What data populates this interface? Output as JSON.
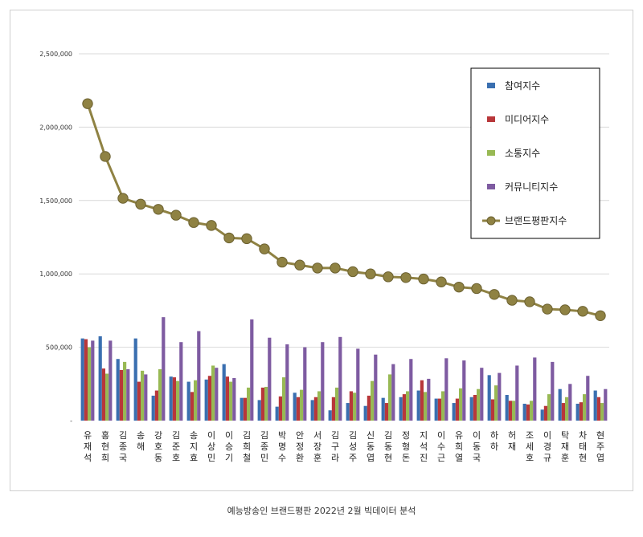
{
  "caption": "예능방송인 브랜드평판  2022년 2월 빅데이터 분석",
  "chart_data": {
    "type": "bar",
    "ylim": [
      0,
      2500000
    ],
    "yticks": [
      {
        "value": 0,
        "label": "-"
      },
      {
        "value": 500000,
        "label": "500,000"
      },
      {
        "value": 1000000,
        "label": "1,000,000"
      },
      {
        "value": 1500000,
        "label": "1,500,000"
      },
      {
        "value": 2000000,
        "label": "2,000,000"
      },
      {
        "value": 2500000,
        "label": "2,500,000"
      }
    ],
    "grid": true,
    "legend_position": "top-right",
    "categories": [
      "유재석",
      "홍현희",
      "김종국",
      "송해",
      "강호동",
      "김준호",
      "송지효",
      "이상민",
      "이승기",
      "김희철",
      "김종민",
      "박명수",
      "안정환",
      "서장훈",
      "김구라",
      "김성주",
      "신동엽",
      "김동현",
      "정형돈",
      "지석진",
      "이수근",
      "유희열",
      "이동국",
      "하하",
      "허재",
      "조세호",
      "이경규",
      "탁재훈",
      "차태현",
      "현주엽"
    ],
    "series": [
      {
        "name": "참여지수",
        "type": "bar",
        "color": "#3a6fb0",
        "values": [
          560000,
          575000,
          420000,
          560000,
          170000,
          300000,
          265000,
          280000,
          385000,
          155000,
          140000,
          95000,
          190000,
          140000,
          70000,
          120000,
          100000,
          155000,
          160000,
          205000,
          150000,
          120000,
          160000,
          310000,
          175000,
          115000,
          75000,
          215000,
          115000,
          205000
        ]
      },
      {
        "name": "미디어지수",
        "type": "bar",
        "color": "#b8373a",
        "values": [
          555000,
          355000,
          345000,
          265000,
          205000,
          295000,
          195000,
          305000,
          300000,
          155000,
          225000,
          165000,
          160000,
          160000,
          160000,
          200000,
          170000,
          120000,
          180000,
          275000,
          150000,
          150000,
          175000,
          145000,
          135000,
          110000,
          100000,
          120000,
          125000,
          160000
        ]
      },
      {
        "name": "소통지수",
        "type": "bar",
        "color": "#98b954",
        "values": [
          500000,
          320000,
          400000,
          340000,
          350000,
          270000,
          275000,
          375000,
          265000,
          225000,
          230000,
          295000,
          210000,
          200000,
          225000,
          190000,
          270000,
          315000,
          200000,
          195000,
          200000,
          220000,
          215000,
          240000,
          135000,
          135000,
          180000,
          160000,
          180000,
          120000
        ]
      },
      {
        "name": "커뮤니티지수",
        "type": "bar",
        "color": "#7e5ba1",
        "values": [
          545000,
          545000,
          350000,
          315000,
          705000,
          535000,
          610000,
          360000,
          290000,
          690000,
          565000,
          520000,
          500000,
          535000,
          570000,
          490000,
          450000,
          385000,
          420000,
          285000,
          425000,
          410000,
          360000,
          325000,
          375000,
          430000,
          400000,
          250000,
          305000,
          215000
        ]
      },
      {
        "name": "브랜드평판지수",
        "type": "line",
        "color": "#8f8243",
        "values": [
          2160000,
          1800000,
          1515000,
          1475000,
          1440000,
          1400000,
          1350000,
          1330000,
          1245000,
          1240000,
          1170000,
          1080000,
          1060000,
          1040000,
          1040000,
          1015000,
          1000000,
          980000,
          975000,
          965000,
          945000,
          910000,
          900000,
          860000,
          820000,
          810000,
          760000,
          755000,
          745000,
          715000
        ]
      }
    ]
  }
}
